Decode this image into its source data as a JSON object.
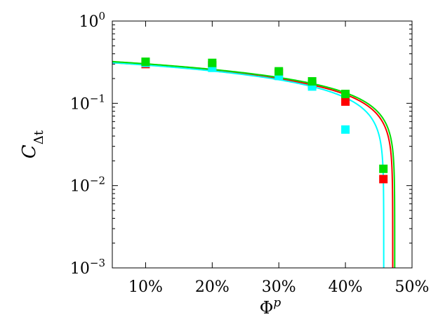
{
  "chart_data": {
    "type": "scatter",
    "xlabel": "Φ",
    "xlabel_sup": "p",
    "ylabel": "C",
    "ylabel_sub": "Δt",
    "xlim": [
      0.05,
      0.5
    ],
    "ylim": [
      0.001,
      1
    ],
    "y_scale": "log",
    "x_ticks": [
      0.1,
      0.2,
      0.3,
      0.4,
      0.5
    ],
    "x_tick_labels": [
      "10%",
      "20%",
      "30%",
      "40%",
      "50%"
    ],
    "y_ticks": [
      0.001,
      0.01,
      0.1,
      1
    ],
    "y_tick_labels": [
      {
        "base": "10",
        "exp": "−3"
      },
      {
        "base": "10",
        "exp": "−2"
      },
      {
        "base": "10",
        "exp": "−1"
      },
      {
        "base": "10",
        "exp": "0"
      }
    ],
    "grid": false,
    "legend": "none",
    "series": [
      {
        "color": "#ff0000",
        "points": [
          [
            0.1,
            0.3
          ],
          [
            0.2,
            0.29
          ],
          [
            0.3,
            0.235
          ],
          [
            0.35,
            0.17
          ],
          [
            0.4,
            0.105
          ],
          [
            0.457,
            0.012
          ]
        ],
        "curve": {
          "a": 0.33,
          "phi_max": 0.471,
          "p": 0.5
        }
      },
      {
        "color": "#00ffff",
        "points": [
          [
            0.1,
            0.31
          ],
          [
            0.2,
            0.27
          ],
          [
            0.3,
            0.215
          ],
          [
            0.35,
            0.16
          ],
          [
            0.4,
            0.048
          ]
        ],
        "curve": {
          "a": 0.33,
          "phi_max": 0.4575,
          "p": 0.5
        }
      },
      {
        "color": "#00dd00",
        "points": [
          [
            0.1,
            0.32
          ],
          [
            0.2,
            0.31
          ],
          [
            0.3,
            0.245
          ],
          [
            0.35,
            0.185
          ],
          [
            0.4,
            0.13
          ],
          [
            0.457,
            0.016
          ]
        ],
        "curve": {
          "a": 0.34,
          "phi_max": 0.474,
          "p": 0.5
        }
      }
    ]
  }
}
